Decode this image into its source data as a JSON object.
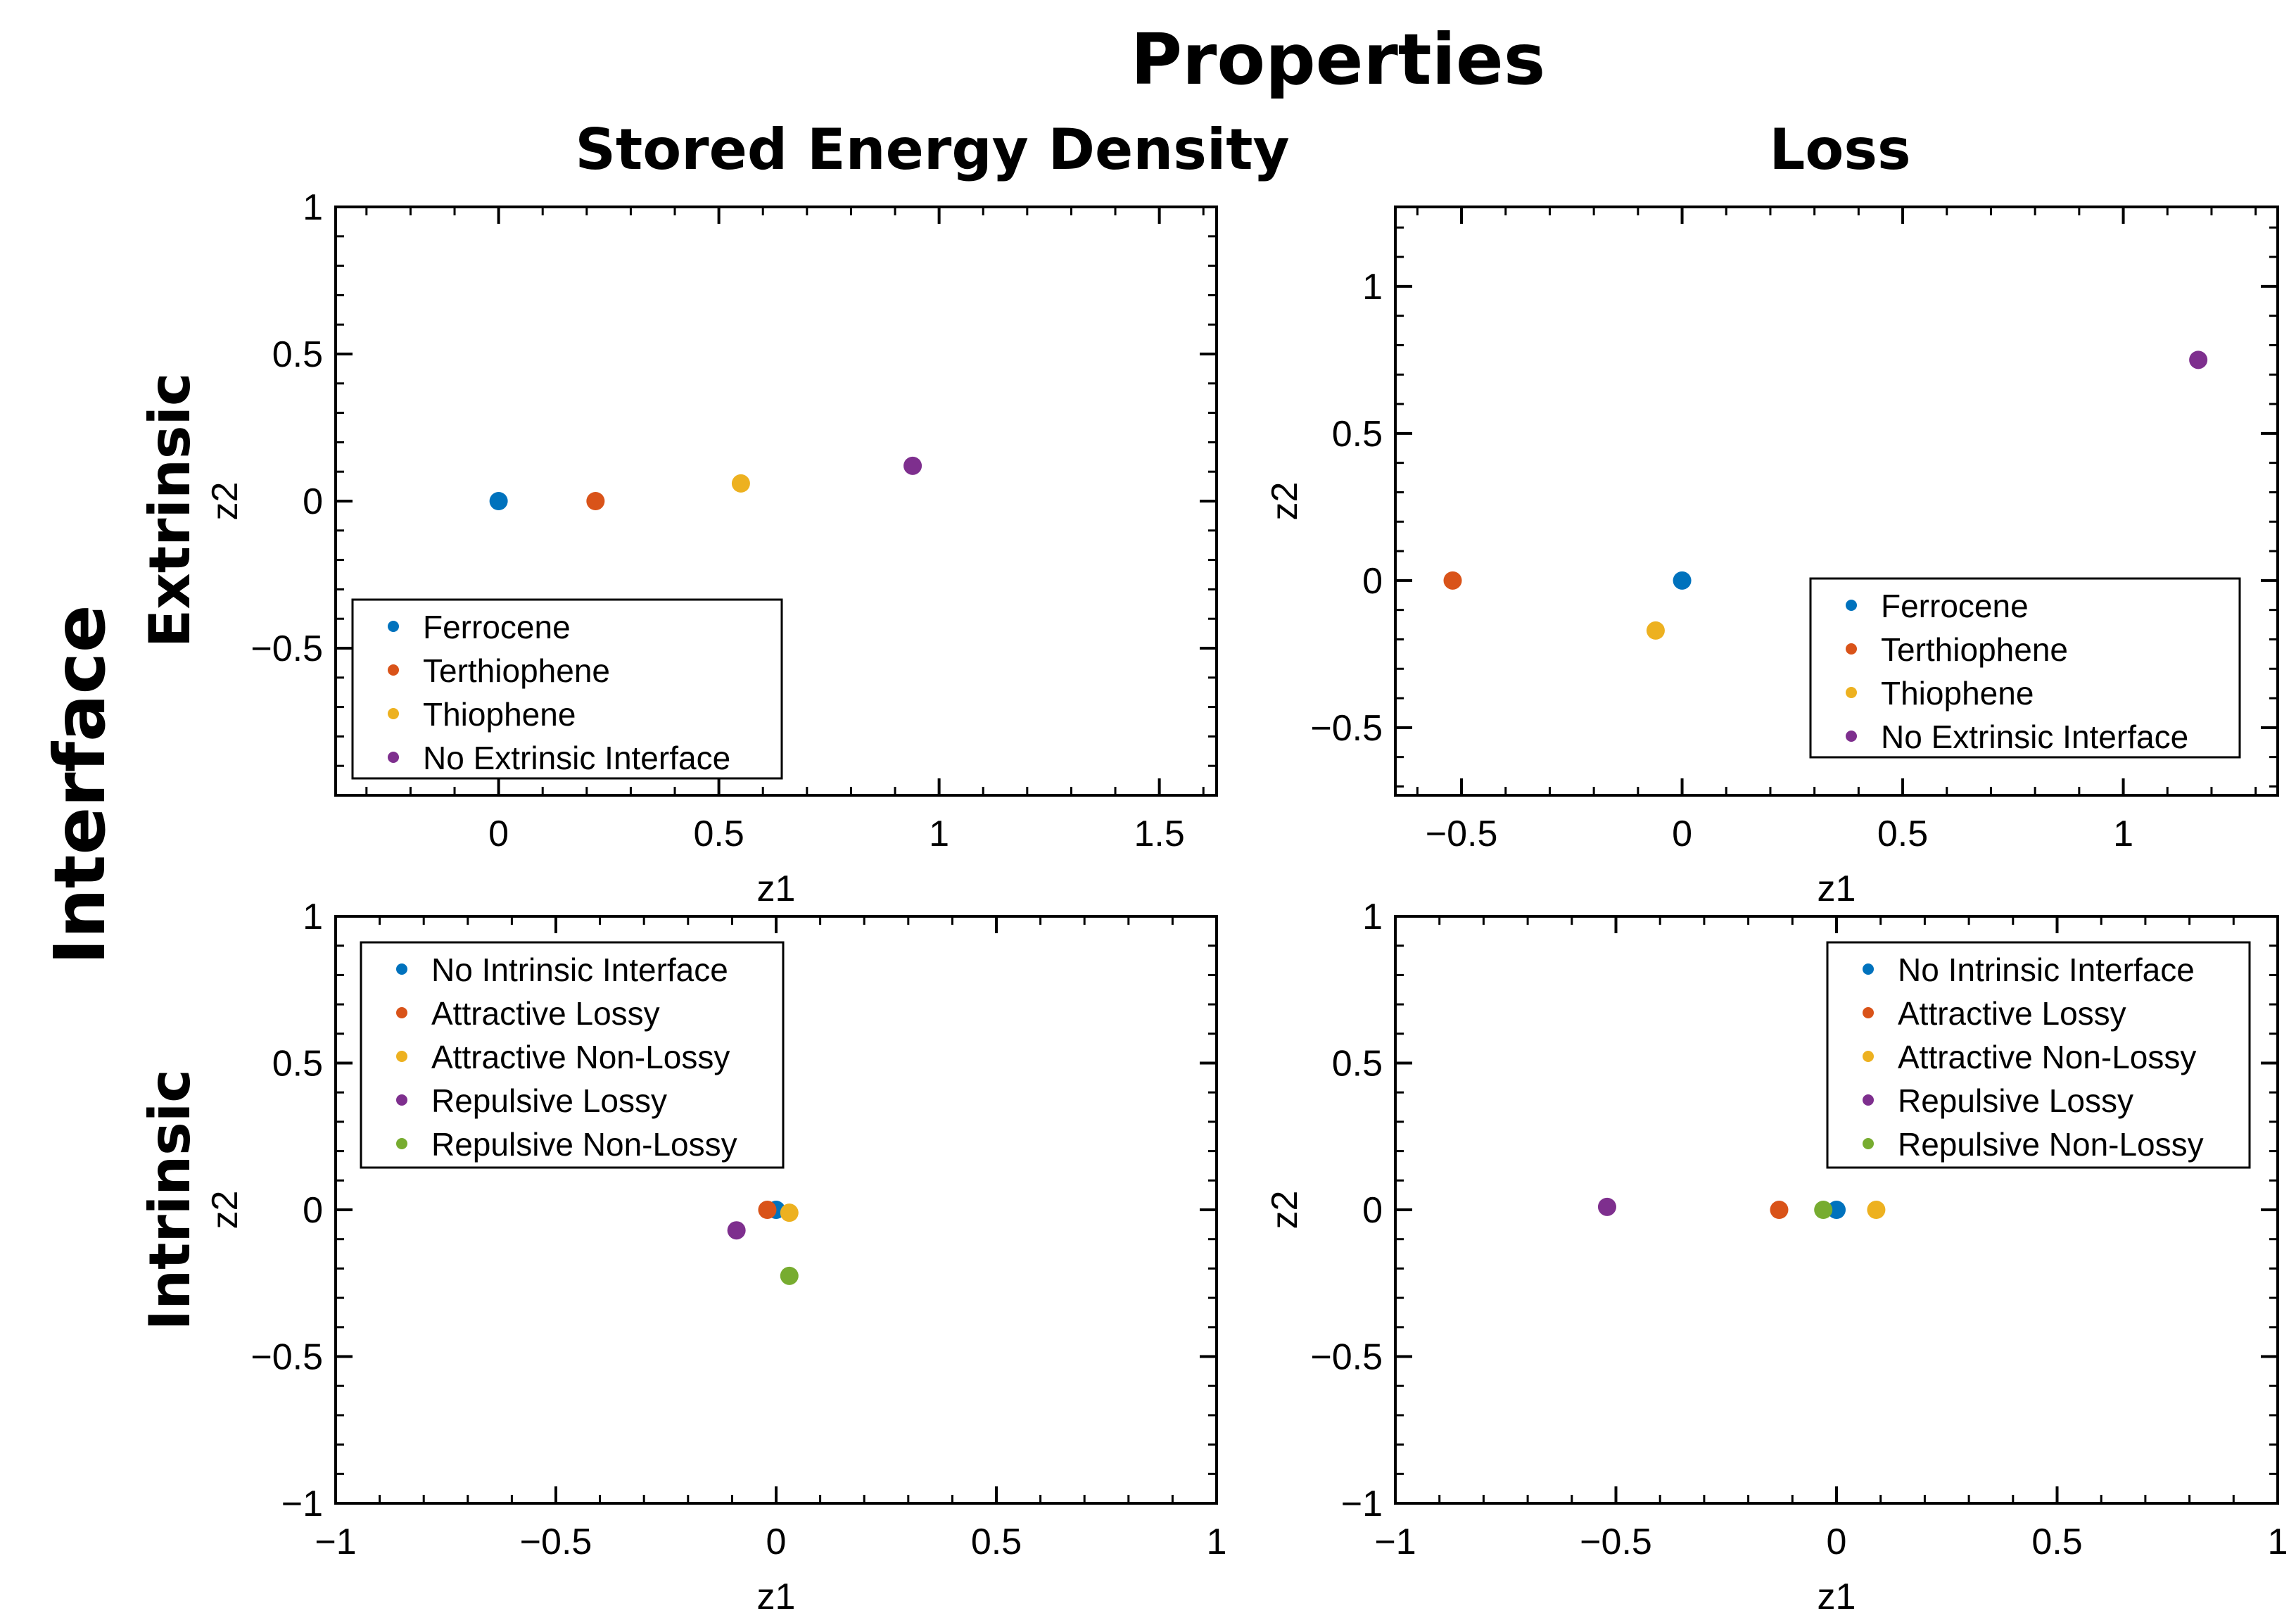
{
  "figure": {
    "title": "Properties",
    "column_titles": [
      "Stored Energy Density",
      "Loss"
    ],
    "row_group_title": "Interface",
    "row_titles": [
      "Extrinsic",
      "Intrinsic"
    ]
  },
  "chart_data": [
    {
      "type": "scatter",
      "title": "",
      "xlabel": "z1",
      "ylabel": "z2",
      "xlim": [
        -0.37,
        1.63
      ],
      "ylim": [
        -1,
        1
      ],
      "xticks": [
        0,
        0.5,
        1,
        1.5
      ],
      "xtick_labels": [
        "0",
        "0.5",
        "1",
        "1.5"
      ],
      "yticks": [
        -0.5,
        0,
        0.5,
        1
      ],
      "ytick_labels": [
        "−0.5",
        "0",
        "0.5",
        "1"
      ],
      "legend_position": "bottom-left",
      "series": [
        {
          "name": "Ferrocene",
          "color": "#0072BD",
          "points": [
            [
              0.0,
              0.0
            ]
          ]
        },
        {
          "name": "Terthiophene",
          "color": "#D95319",
          "points": [
            [
              0.22,
              0.0
            ]
          ]
        },
        {
          "name": "Thiophene",
          "color": "#EDB120",
          "points": [
            [
              0.55,
              0.06
            ]
          ]
        },
        {
          "name": "No Extrinsic Interface",
          "color": "#7E2F8E",
          "points": [
            [
              0.94,
              0.12
            ]
          ]
        }
      ]
    },
    {
      "type": "scatter",
      "title": "",
      "xlabel": "z1",
      "ylabel": "z2",
      "xlim": [
        -0.65,
        1.35
      ],
      "ylim": [
        -0.73,
        1.27
      ],
      "xticks": [
        -0.5,
        0,
        0.5,
        1
      ],
      "xtick_labels": [
        "−0.5",
        "0",
        "0.5",
        "1"
      ],
      "yticks": [
        -0.5,
        0,
        0.5,
        1
      ],
      "ytick_labels": [
        "−0.5",
        "0",
        "0.5",
        "1"
      ],
      "legend_position": "bottom-right",
      "series": [
        {
          "name": "Ferrocene",
          "color": "#0072BD",
          "points": [
            [
              0.0,
              0.0
            ]
          ]
        },
        {
          "name": "Terthiophene",
          "color": "#D95319",
          "points": [
            [
              -0.52,
              0.0
            ]
          ]
        },
        {
          "name": "Thiophene",
          "color": "#EDB120",
          "points": [
            [
              -0.06,
              -0.17
            ]
          ]
        },
        {
          "name": "No Extrinsic Interface",
          "color": "#7E2F8E",
          "points": [
            [
              1.17,
              0.75
            ]
          ]
        }
      ]
    },
    {
      "type": "scatter",
      "title": "",
      "xlabel": "z1",
      "ylabel": "z2",
      "xlim": [
        -1,
        1
      ],
      "ylim": [
        -1,
        1
      ],
      "xticks": [
        -1,
        -0.5,
        0,
        0.5,
        1
      ],
      "xtick_labels": [
        "−1",
        "−0.5",
        "0",
        "0.5",
        "1"
      ],
      "yticks": [
        -1,
        -0.5,
        0,
        0.5,
        1
      ],
      "ytick_labels": [
        "−1",
        "−0.5",
        "0",
        "0.5",
        "1"
      ],
      "legend_position": "top-left",
      "series": [
        {
          "name": "No Intrinsic Interface",
          "color": "#0072BD",
          "points": [
            [
              0.0,
              0.0
            ]
          ]
        },
        {
          "name": "Attractive Lossy",
          "color": "#D95319",
          "points": [
            [
              -0.02,
              0.0
            ]
          ]
        },
        {
          "name": "Attractive Non-Lossy",
          "color": "#EDB120",
          "points": [
            [
              0.03,
              -0.01
            ]
          ]
        },
        {
          "name": "Repulsive Lossy",
          "color": "#7E2F8E",
          "points": [
            [
              -0.09,
              -0.07
            ]
          ]
        },
        {
          "name": "Repulsive Non-Lossy",
          "color": "#77AC30",
          "points": [
            [
              0.03,
              -0.225
            ]
          ]
        }
      ]
    },
    {
      "type": "scatter",
      "title": "",
      "xlabel": "z1",
      "ylabel": "z2",
      "xlim": [
        -1,
        1
      ],
      "ylim": [
        -1,
        1
      ],
      "xticks": [
        -1,
        -0.5,
        0,
        0.5,
        1
      ],
      "xtick_labels": [
        "−1",
        "−0.5",
        "0",
        "0.5",
        "1"
      ],
      "yticks": [
        -1,
        -0.5,
        0,
        0.5,
        1
      ],
      "ytick_labels": [
        "−1",
        "−0.5",
        "0",
        "0.5",
        "1"
      ],
      "legend_position": "top-right",
      "series": [
        {
          "name": "No Intrinsic Interface",
          "color": "#0072BD",
          "points": [
            [
              0.0,
              0.0
            ]
          ]
        },
        {
          "name": "Attractive Lossy",
          "color": "#D95319",
          "points": [
            [
              -0.13,
              0.0
            ]
          ]
        },
        {
          "name": "Attractive Non-Lossy",
          "color": "#EDB120",
          "points": [
            [
              0.09,
              0.0
            ]
          ]
        },
        {
          "name": "Repulsive Lossy",
          "color": "#7E2F8E",
          "points": [
            [
              -0.52,
              0.01
            ]
          ]
        },
        {
          "name": "Repulsive Non-Lossy",
          "color": "#77AC30",
          "points": [
            [
              -0.03,
              0.0
            ]
          ]
        }
      ]
    }
  ]
}
